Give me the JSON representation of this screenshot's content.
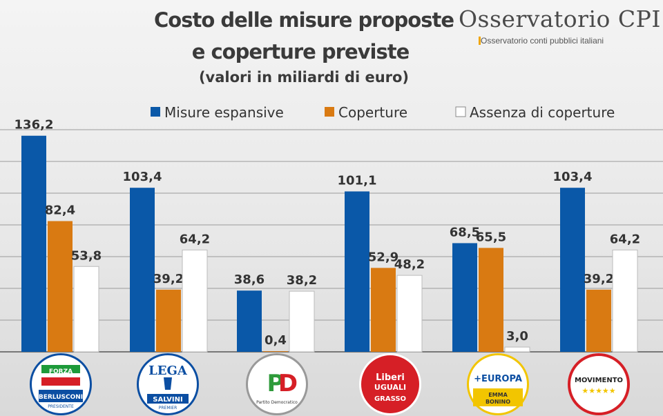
{
  "header": {
    "title_line1": "Costo delle misure proposte",
    "title_line2": "e coperture previste",
    "subtitle": "(valori  in miliardi di euro)",
    "brand": "Osservatorio CPI",
    "brand_tagline": "Osservatorio conti pubblici italiani"
  },
  "colors": {
    "misure": "#0a58a8",
    "coperture": "#d97a12",
    "assenza": "#ffffff",
    "grid": "#9a9a9a"
  },
  "chart_data": {
    "type": "bar",
    "title": "Costo delle misure proposte e coperture previste",
    "subtitle": "(valori  in miliardi di euro)",
    "categories": [
      "Forza Italia",
      "Lega",
      "PD",
      "Liberi e Uguali",
      "+Europa",
      "MoVimento 5 Stelle"
    ],
    "series": [
      {
        "name": "Misure espansive",
        "values": [
          136.2,
          103.4,
          38.6,
          101.1,
          68.5,
          103.4
        ],
        "labels": [
          "136,2",
          "103,4",
          "38,6",
          "101,1",
          "68,5",
          "103,4"
        ]
      },
      {
        "name": "Coperture",
        "values": [
          82.4,
          39.2,
          0.4,
          52.9,
          65.5,
          39.2
        ],
        "labels": [
          "82,4",
          "39,2",
          "0,4",
          "52,9",
          "65,5",
          "39,2"
        ]
      },
      {
        "name": "Assenza di coperture",
        "values": [
          53.8,
          64.2,
          38.2,
          48.2,
          3.0,
          64.2
        ],
        "labels": [
          "53,8",
          "64,2",
          "38,2",
          "48,2",
          "3,0",
          "64,2"
        ]
      }
    ],
    "ylim": [
      0,
      140
    ],
    "grid": true,
    "legend": "top"
  },
  "logos": [
    {
      "name": "forza-italia",
      "line1": "FORZA ITALIA",
      "line2": "BERLUSCONI",
      "line3": "PRESIDENTE"
    },
    {
      "name": "lega",
      "line1": "LEGA",
      "line2": "SALVINI",
      "line3": "PREMIER"
    },
    {
      "name": "pd",
      "line1": "PD",
      "line2": "Partito Democratico"
    },
    {
      "name": "leu",
      "line1": "Liberi e UGUALI",
      "line2": "GRASSO"
    },
    {
      "name": "piu-europa",
      "line1": "+EUROPA",
      "line2": "EMMA BONINO"
    },
    {
      "name": "m5s",
      "line1": "MOVIMENTO",
      "line2": "★★★★★"
    }
  ]
}
